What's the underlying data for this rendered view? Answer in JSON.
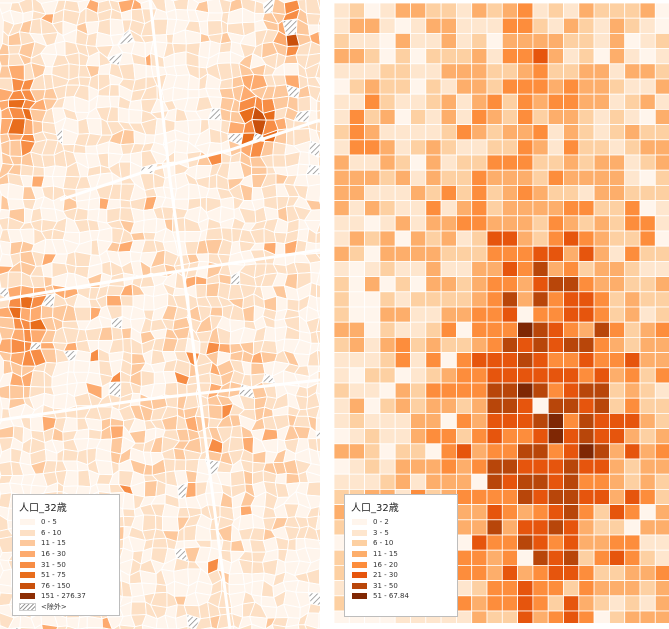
{
  "left_map": {
    "legend": {
      "title": "人口_32歳",
      "classes": [
        {
          "label": "0 - 5",
          "color": "#fff5ec"
        },
        {
          "label": "6 - 10",
          "color": "#fde0c5"
        },
        {
          "label": "11 - 15",
          "color": "#fdc89c"
        },
        {
          "label": "16 - 30",
          "color": "#fdab6f"
        },
        {
          "label": "31 - 50",
          "color": "#f78d45"
        },
        {
          "label": "51 - 75",
          "color": "#e86d1c"
        },
        {
          "label": "76 - 150",
          "color": "#c9500c"
        },
        {
          "label": "151 - 276.37",
          "color": "#8c2d04"
        },
        {
          "label": "<除外>",
          "color": "hatch"
        }
      ]
    }
  },
  "right_map": {
    "legend": {
      "title": "人口_32歳",
      "classes": [
        {
          "label": "0 - 2",
          "color": "#fff5ec"
        },
        {
          "label": "3 - 5",
          "color": "#fee6ce"
        },
        {
          "label": "6 - 10",
          "color": "#fdd0a2"
        },
        {
          "label": "11 - 15",
          "color": "#fdae6b"
        },
        {
          "label": "16 - 20",
          "color": "#fd8d3c"
        },
        {
          "label": "21 - 30",
          "color": "#e6550d"
        },
        {
          "label": "31 - 50",
          "color": "#b8460a"
        },
        {
          "label": "51 - 67.84",
          "color": "#7f2704"
        }
      ]
    }
  }
}
